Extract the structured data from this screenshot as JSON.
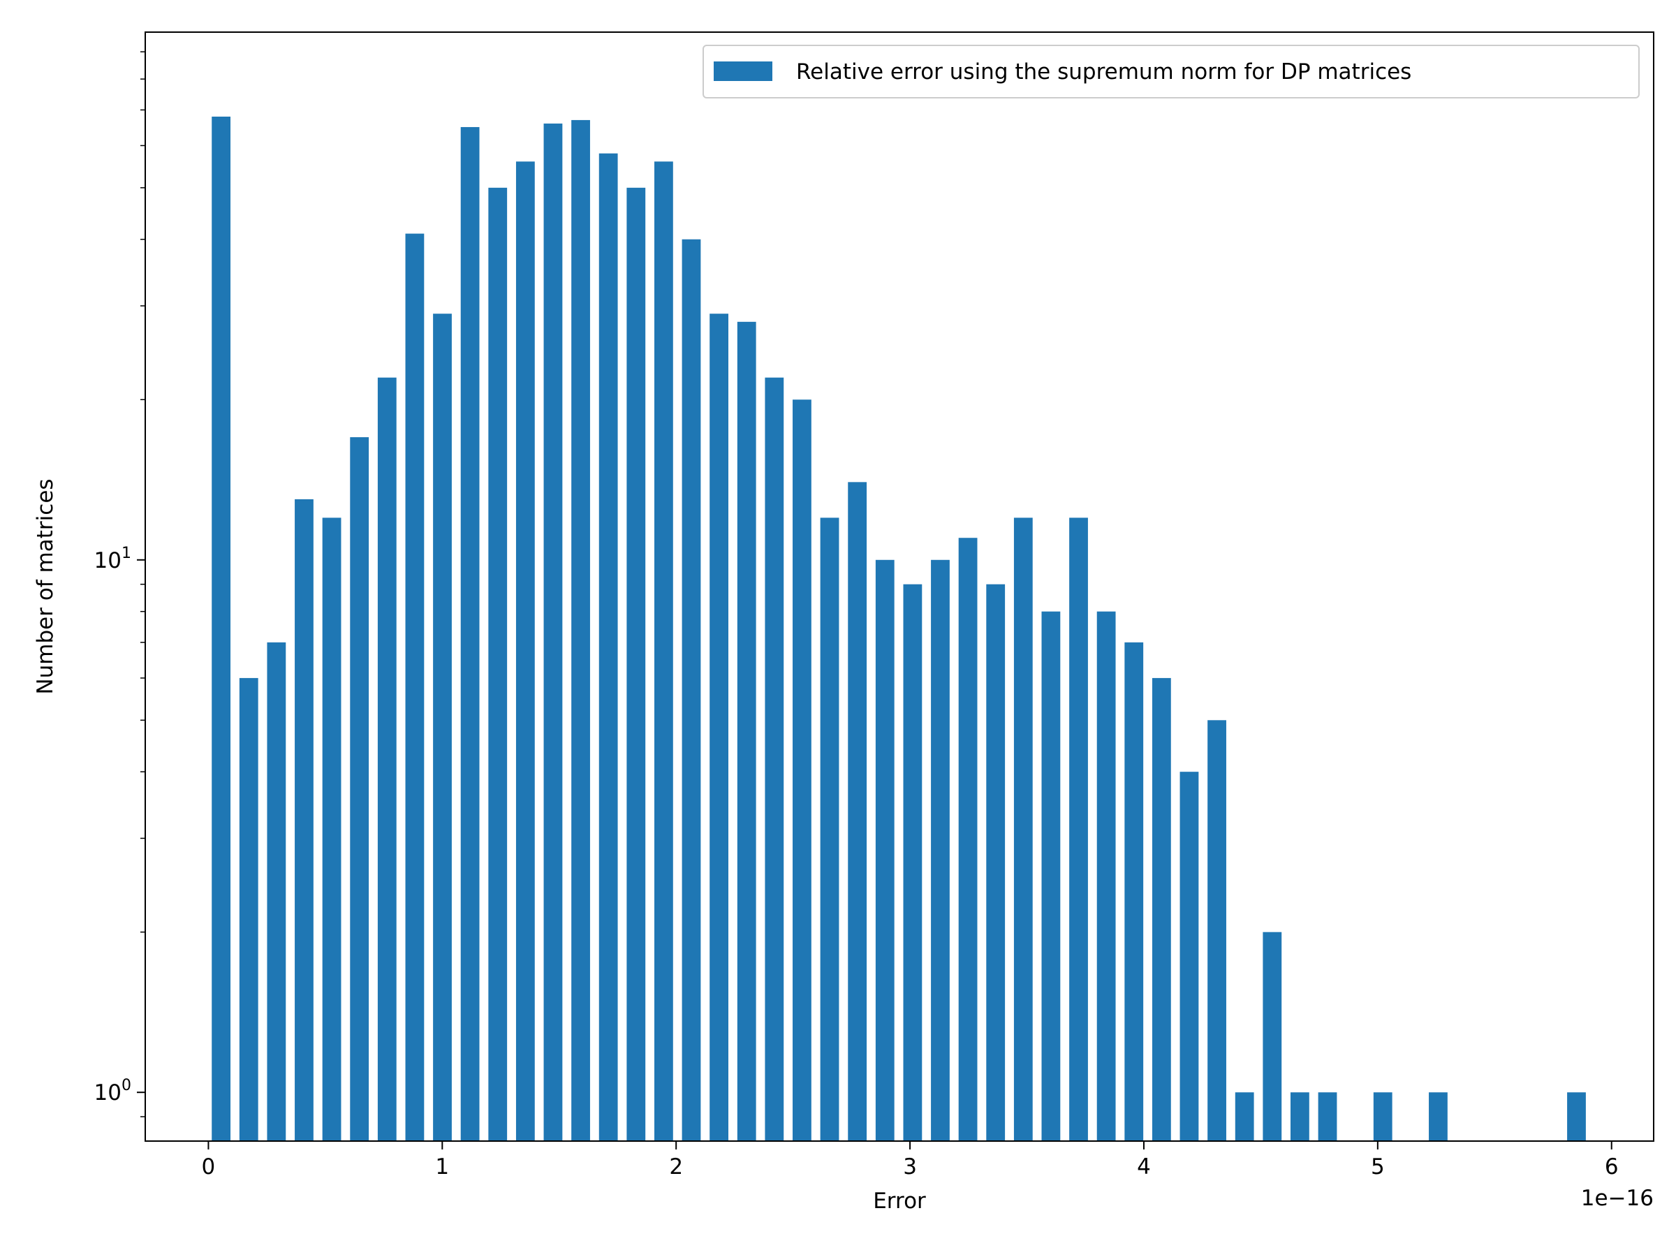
{
  "chart_data": {
    "type": "bar",
    "xlabel": "Error",
    "ylabel": "Number of matrices",
    "x_offset_label": "1e−16",
    "x_scale_exponent": -16,
    "xlim": [
      -0.27,
      6.18
    ],
    "yscale": "log",
    "ylim": [
      0.81,
      98
    ],
    "bar_width": 0.08,
    "color": "#1f77b4",
    "grid": false,
    "legend_position": "top-right",
    "x_ticks": [
      {
        "value": 0,
        "label": "0"
      },
      {
        "value": 1,
        "label": "1"
      },
      {
        "value": 2,
        "label": "2"
      },
      {
        "value": 3,
        "label": "3"
      },
      {
        "value": 4,
        "label": "4"
      },
      {
        "value": 5,
        "label": "5"
      },
      {
        "value": 6,
        "label": "6"
      }
    ],
    "y_ticks": [
      {
        "value": 1,
        "base": "10",
        "exp": "0"
      },
      {
        "value": 10,
        "base": "10",
        "exp": "1"
      }
    ],
    "series": [
      {
        "name": "Relative error using the supremum norm for DP matrices",
        "x": [
          0.0544,
          0.1727,
          0.291,
          0.4092,
          0.5275,
          0.6458,
          0.7641,
          0.8824,
          1.0006,
          1.1189,
          1.2372,
          1.3555,
          1.4737,
          1.592,
          1.7103,
          1.8286,
          1.9469,
          2.0651,
          2.1834,
          2.3017,
          2.42,
          2.5382,
          2.6565,
          2.7748,
          2.8931,
          3.0114,
          3.1296,
          3.2479,
          3.3662,
          3.4845,
          3.6027,
          3.721,
          3.8393,
          3.9576,
          4.0759,
          4.1941,
          4.3124,
          4.4307,
          4.549,
          4.6672,
          4.7855,
          5.0221,
          5.2586,
          5.85
        ],
        "values": [
          68,
          6,
          7,
          13,
          12,
          17,
          22,
          41,
          29,
          65,
          50,
          56,
          66,
          67,
          58,
          50,
          56,
          40,
          29,
          28,
          22,
          20,
          12,
          14,
          10,
          9,
          10,
          11,
          9,
          12,
          8,
          12,
          8,
          7,
          6,
          4,
          5,
          1,
          2,
          1,
          1,
          1,
          1,
          1
        ]
      }
    ]
  }
}
